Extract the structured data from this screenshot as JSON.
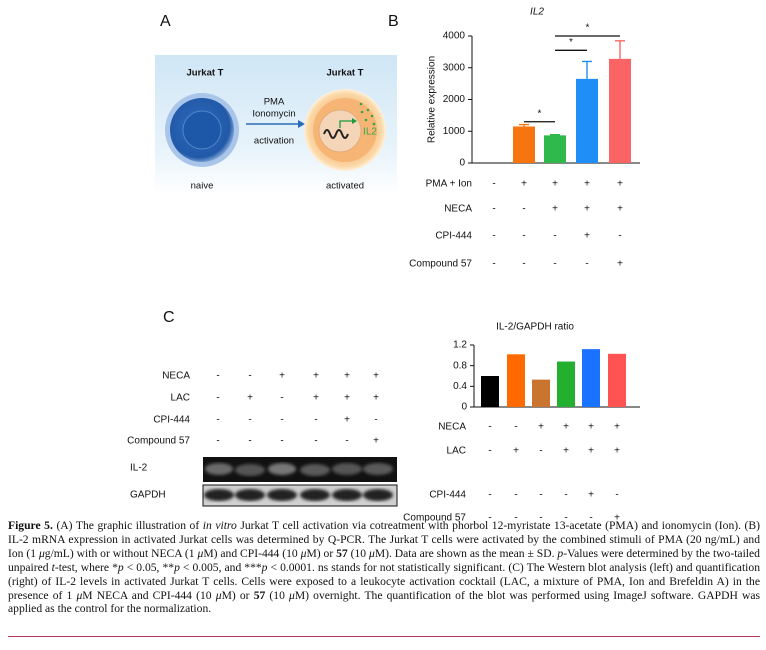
{
  "panel_labels": [
    "A",
    "B",
    "C"
  ],
  "diagram": {
    "naive_cell": {
      "label": "Jurkat T",
      "state": "naive"
    },
    "activated_cell": {
      "label": "Jurkat T",
      "state": "activated",
      "gene": "IL2"
    },
    "stimulus": [
      "PMA",
      "Ionomycin"
    ],
    "arrow_label": "activation"
  },
  "chart_data": [
    {
      "type": "bar",
      "title": "IL2",
      "ylabel": "Relative expression",
      "categories": [
        null,
        null,
        null,
        null,
        null
      ],
      "values": [
        0,
        1150,
        870,
        2650,
        3280
      ],
      "errors": [
        0,
        60,
        20,
        550,
        570
      ],
      "colors": [
        "#f5a04a",
        "#f7740f",
        "#2fb84b",
        "#1f8ff7",
        "#fb6464"
      ],
      "ylim": [
        0,
        4000
      ],
      "yticks": [
        0,
        1000,
        2000,
        3000,
        4000
      ],
      "annotations": [
        {
          "text": "*",
          "from": 1,
          "to": 2,
          "y": 1300
        },
        {
          "text": "*",
          "from": 2,
          "to": 3,
          "y": 3550
        },
        {
          "text": "*",
          "from": 2,
          "to": 4,
          "y": 4000
        }
      ],
      "conditions": [
        {
          "name": "PMA + Ion",
          "values": [
            "-",
            "+",
            "+",
            "+",
            "+"
          ]
        },
        {
          "name": "NECA",
          "values": [
            "-",
            "-",
            "+",
            "+",
            "+"
          ]
        },
        {
          "name": "CPI-444",
          "values": [
            "-",
            "-",
            "-",
            "+",
            "-"
          ]
        },
        {
          "name": "Compound 57",
          "values": [
            "-",
            "-",
            "-",
            "-",
            "+"
          ]
        }
      ]
    },
    {
      "type": "bar",
      "title": "IL-2/GAPDH ratio",
      "categories": [
        null,
        null,
        null,
        null,
        null,
        null
      ],
      "values": [
        0.6,
        1.02,
        0.53,
        0.88,
        1.12,
        1.03
      ],
      "colors": [
        "#000000",
        "#ff6a00",
        "#c9742f",
        "#22b02e",
        "#1a73ff",
        "#ff5252"
      ],
      "ylim": [
        0,
        1.2
      ],
      "yticks": [
        0,
        0.4,
        0.8,
        1.2
      ],
      "conditions": [
        {
          "name": "NECA",
          "values": [
            "-",
            "-",
            "+",
            "+",
            "+",
            "+"
          ]
        },
        {
          "name": "LAC",
          "values": [
            "-",
            "+",
            "-",
            "+",
            "+",
            "+"
          ]
        },
        {
          "name": "CPI-444",
          "values": [
            "-",
            "-",
            "-",
            "-",
            "+",
            "-"
          ]
        },
        {
          "name": "Compound 57",
          "values": [
            "-",
            "-",
            "-",
            "-",
            "-",
            "+"
          ]
        }
      ]
    }
  ],
  "blot": {
    "conditions": [
      {
        "name": "NECA",
        "values": [
          "-",
          "-",
          "+",
          "+",
          "+",
          "+"
        ]
      },
      {
        "name": "LAC",
        "values": [
          "-",
          "+",
          "-",
          "+",
          "+",
          "+"
        ]
      },
      {
        "name": "CPI-444",
        "values": [
          "-",
          "-",
          "-",
          "-",
          "+",
          "-"
        ]
      },
      {
        "name": "Compound 57",
        "values": [
          "-",
          "-",
          "-",
          "-",
          "-",
          "+"
        ]
      }
    ],
    "rows": [
      "IL-2",
      "GAPDH"
    ]
  },
  "caption": [
    {
      "text": "Figure 5.",
      "font": "bold"
    },
    {
      "text": " (A) The graphic illustration of ",
      "font": "normal"
    },
    {
      "text": "in vitro",
      "font": "italic"
    },
    {
      "text": " Jurkat T cell activation via cotreatment with phorbol 12-myristate 13-acetate (PMA) and ionomycin (Ion). (B) IL-2 mRNA expression in activated Jurkat cells was determined by Q-PCR. The Jurkat T cells were activated by the combined stimuli of PMA (20 ng/mL) and Ion (1 ",
      "font": "normal"
    },
    {
      "text": "μ",
      "font": "italic"
    },
    {
      "text": "g/mL) with or without NECA (1 ",
      "font": "normal"
    },
    {
      "text": "μ",
      "font": "italic"
    },
    {
      "text": "M) and CPI-444 (10 ",
      "font": "normal"
    },
    {
      "text": "μ",
      "font": "italic"
    },
    {
      "text": "M) or ",
      "font": "normal"
    },
    {
      "text": "57",
      "font": "bold"
    },
    {
      "text": " (10 ",
      "font": "normal"
    },
    {
      "text": "μ",
      "font": "italic"
    },
    {
      "text": "M). Data are shown as the mean ± SD. ",
      "font": "normal"
    },
    {
      "text": "p",
      "font": "italic"
    },
    {
      "text": "-Values were determined by the two-tailed unpaired ",
      "font": "normal"
    },
    {
      "text": "t",
      "font": "italic"
    },
    {
      "text": "-test, where *",
      "font": "normal"
    },
    {
      "text": "p",
      "font": "italic"
    },
    {
      "text": " < 0.05, **",
      "font": "normal"
    },
    {
      "text": "p",
      "font": "italic"
    },
    {
      "text": " < 0.005, and ***",
      "font": "normal"
    },
    {
      "text": "p",
      "font": "italic"
    },
    {
      "text": " < 0.0001. ns stands for not statistically significant. (C) The Western blot analysis (left) and quantification (right) of IL-2 levels in activated Jurkat T cells. Cells were exposed to a leukocyte activation cocktail (LAC, a mixture of PMA, Ion and Brefeldin A) in the presence of 1 ",
      "font": "normal"
    },
    {
      "text": "μ",
      "font": "italic"
    },
    {
      "text": "M NECA and CPI-444 (10 ",
      "font": "normal"
    },
    {
      "text": "μ",
      "font": "italic"
    },
    {
      "text": "M) or ",
      "font": "normal"
    },
    {
      "text": "57",
      "font": "bold"
    },
    {
      "text": " (10 ",
      "font": "normal"
    },
    {
      "text": "μ",
      "font": "italic"
    },
    {
      "text": "M) overnight. The quantification of the blot was performed using ImageJ software. GAPDH was applied as the control for the normalization.",
      "font": "normal"
    }
  ]
}
